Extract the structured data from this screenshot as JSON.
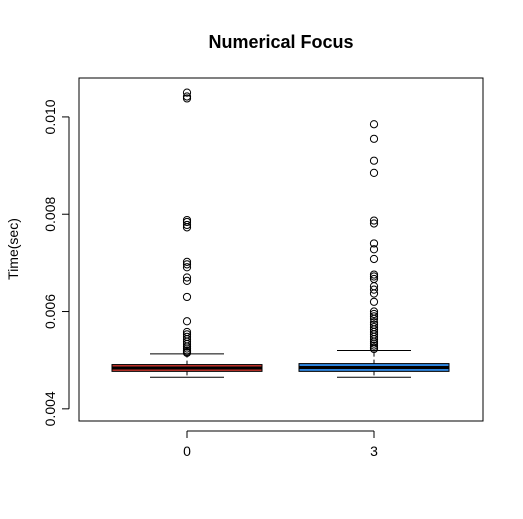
{
  "chart_data": {
    "type": "boxplot",
    "title": "Numerical Focus",
    "xlabel": "",
    "ylabel": "Time(sec)",
    "ylim": [
      0.00375,
      0.0108
    ],
    "y_ticks": [
      0.004,
      0.006,
      0.008,
      0.01
    ],
    "y_tick_labels": [
      "0.004",
      "0.006",
      "0.008",
      "0.010"
    ],
    "categories": [
      "0",
      "3"
    ],
    "series": [
      {
        "category": "0",
        "color": "#c8342c",
        "whisker_low": 0.00465,
        "q1": 0.00477,
        "median": 0.00484,
        "q3": 0.00491,
        "whisker_high": 0.00513,
        "outliers": [
          0.0105,
          0.01042,
          0.01038,
          0.00788,
          0.00784,
          0.00778,
          0.00773,
          0.00702,
          0.00697,
          0.00691,
          0.0067,
          0.00663,
          0.0063,
          0.0058,
          0.00558,
          0.00553,
          0.00548,
          0.00543,
          0.00538,
          0.00533,
          0.00528,
          0.00524,
          0.0052,
          0.00517,
          0.00515
        ]
      },
      {
        "category": "3",
        "color": "#2f86e0",
        "whisker_low": 0.00465,
        "q1": 0.00477,
        "median": 0.00485,
        "q3": 0.00493,
        "whisker_high": 0.0052,
        "outliers": [
          0.00985,
          0.00955,
          0.0091,
          0.00885,
          0.00787,
          0.00781,
          0.0074,
          0.00728,
          0.00708,
          0.00676,
          0.00672,
          0.00667,
          0.00652,
          0.00645,
          0.00637,
          0.0062,
          0.006,
          0.00595,
          0.0059,
          0.00585,
          0.00578,
          0.00573,
          0.00568,
          0.00563,
          0.00558,
          0.00553,
          0.00548,
          0.00543,
          0.00538,
          0.00534,
          0.0053,
          0.00526,
          0.00523
        ]
      }
    ],
    "grid": false,
    "legend": "none"
  }
}
